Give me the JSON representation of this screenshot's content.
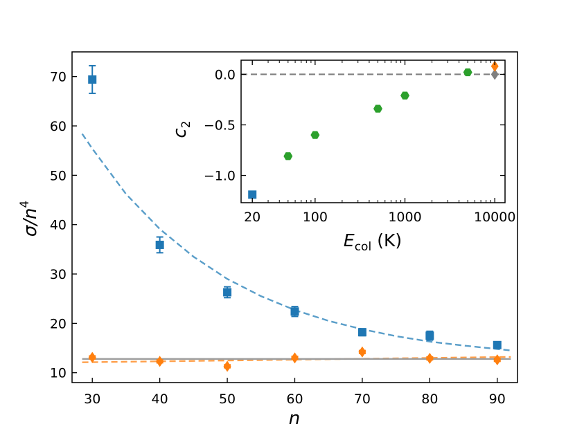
{
  "chart_data": [
    {
      "type": "scatter",
      "title": "",
      "xlabel_italic": "n",
      "ylabel_italic": "σ/n",
      "ylabel_sup": "4",
      "xlim": [
        27,
        93
      ],
      "ylim": [
        8,
        75
      ],
      "xticks": [
        30,
        40,
        50,
        60,
        70,
        80,
        90
      ],
      "xtick_labels": [
        "30",
        "40",
        "50",
        "60",
        "70",
        "80",
        "90"
      ],
      "yticks": [
        10,
        20,
        30,
        40,
        50,
        60,
        70
      ],
      "ytick_labels": [
        "10",
        "20",
        "30",
        "40",
        "50",
        "60",
        "70"
      ],
      "series": [
        {
          "name": "blue-squares",
          "color": "#1f77b4",
          "marker": "square",
          "x": [
            30,
            40,
            50,
            60,
            70,
            80,
            90
          ],
          "y": [
            69.4,
            35.9,
            26.3,
            22.4,
            18.2,
            17.5,
            15.6
          ],
          "yerr": [
            2.8,
            1.6,
            1.1,
            1.0,
            0.7,
            0.9,
            0.6
          ]
        },
        {
          "name": "orange-diamonds",
          "color": "#ff7f0e",
          "marker": "diamond",
          "x": [
            30,
            40,
            50,
            60,
            70,
            80,
            90
          ],
          "y": [
            13.1,
            12.3,
            11.3,
            13.0,
            14.2,
            12.9,
            12.6
          ],
          "yerr": [
            0.3,
            0.3,
            0.3,
            0.3,
            0.3,
            0.3,
            0.3
          ]
        }
      ],
      "fits": [
        {
          "name": "blue-fit",
          "color": "#5a9ec9",
          "style": "dashed",
          "x": [
            28.5,
            30,
            35,
            40,
            45,
            50,
            55,
            60,
            65,
            70,
            75,
            80,
            85,
            90,
            92
          ],
          "y": [
            58.4,
            55.4,
            46.2,
            39.1,
            33.5,
            29.0,
            25.5,
            22.7,
            20.5,
            18.8,
            17.4,
            16.3,
            15.5,
            14.8,
            14.5
          ]
        },
        {
          "name": "orange-fit",
          "color": "#ff9f4a",
          "style": "dashed",
          "x": [
            28.5,
            92
          ],
          "y": [
            12.1,
            13.2
          ]
        },
        {
          "name": "gray-line",
          "color": "#9e9e9e",
          "style": "solid",
          "x": [
            28.5,
            92
          ],
          "y": [
            12.8,
            12.8
          ]
        }
      ]
    },
    {
      "type": "scatter",
      "title": "",
      "xscale": "log",
      "xlabel_main": "E",
      "xlabel_sub": "col",
      "xlabel_unit": "(K)",
      "ylabel_main": "c",
      "ylabel_sub": "2",
      "xlim": [
        15,
        13000
      ],
      "ylim": [
        -1.27,
        0.14
      ],
      "xticks": [
        20,
        100,
        1000,
        10000
      ],
      "xtick_labels": [
        "20",
        "100",
        "1000",
        "10000"
      ],
      "yticks": [
        0.0,
        -0.5,
        -1.0
      ],
      "ytick_labels": [
        "0.0",
        "−0.5",
        "−1.0"
      ],
      "reference_line": {
        "y": 0.0,
        "color": "#7f7f7f",
        "style": "dashed"
      },
      "series": [
        {
          "name": "blue",
          "color": "#1f77b4",
          "marker": "square",
          "x": [
            20
          ],
          "y": [
            -1.19
          ]
        },
        {
          "name": "green",
          "color": "#2ca02c",
          "marker": "hexagon",
          "x": [
            50,
            100,
            500,
            1000,
            5000
          ],
          "y": [
            -0.81,
            -0.6,
            -0.34,
            -0.21,
            0.02
          ]
        },
        {
          "name": "gray",
          "color": "#7f7f7f",
          "marker": "diamond",
          "x": [
            10000
          ],
          "y": [
            0.0
          ]
        },
        {
          "name": "orange",
          "color": "#ff7f0e",
          "marker": "diamond",
          "x": [
            10000
          ],
          "y": [
            0.08
          ]
        }
      ]
    }
  ]
}
